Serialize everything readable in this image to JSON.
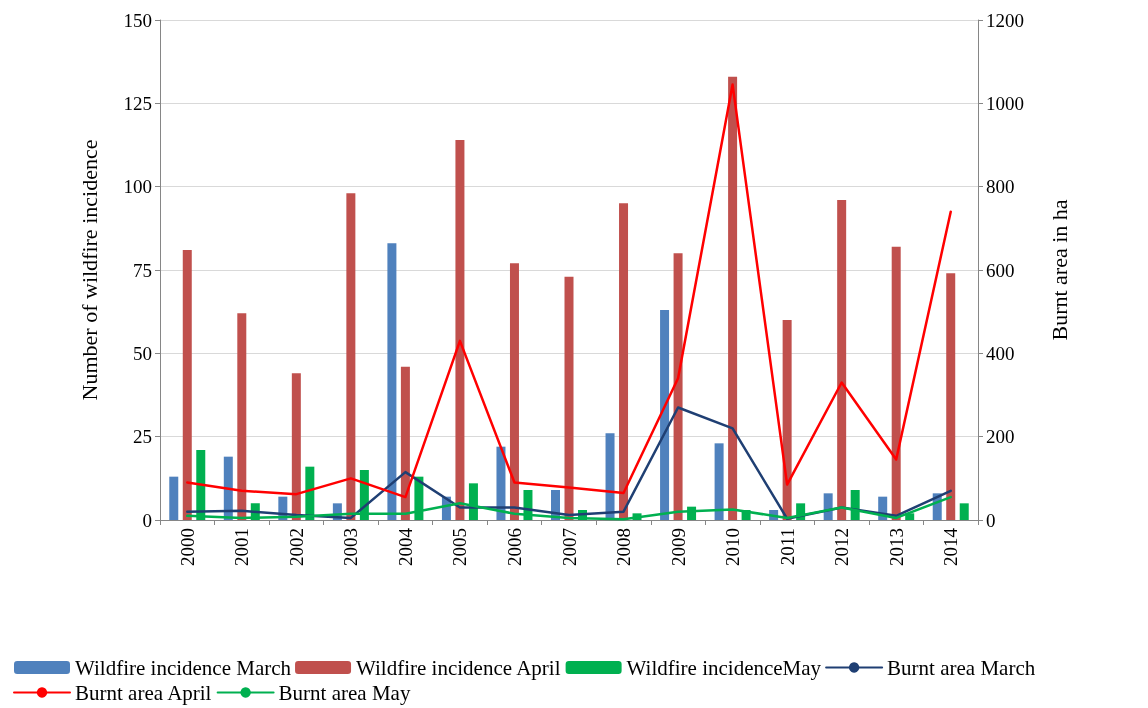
{
  "chart_data": {
    "type": "bar",
    "xlabel": null,
    "ylabel": "Number of wildfire incidence",
    "y2label": "Burnt area in ha",
    "categories": [
      "2000",
      "2001",
      "2002",
      "2003",
      "2004",
      "2005",
      "2006",
      "2007",
      "2008",
      "2009",
      "2010",
      "2011",
      "2012",
      "2013",
      "2014"
    ],
    "series": [
      {
        "name": "Wildfire incidence March",
        "color": "#4f81bd",
        "values": [
          13,
          19,
          7,
          5,
          83,
          7,
          22,
          9,
          26,
          63,
          23,
          3,
          8,
          7,
          8
        ]
      },
      {
        "name": "Wildfire incidence April",
        "color": "#c0504d",
        "values": [
          81,
          62,
          44,
          98,
          46,
          114,
          77,
          73,
          95,
          80,
          133,
          60,
          96,
          82,
          74
        ]
      },
      {
        "name": "Wildfire incidenceMay",
        "color": "#00b050",
        "values": [
          21,
          5,
          16,
          15,
          13,
          11,
          9,
          3,
          2,
          4,
          3,
          5,
          9,
          2,
          5
        ]
      },
      {
        "name": "Burnt area March",
        "type": "line",
        "axis": "y2",
        "color": "#1f3f73",
        "values": [
          20,
          22,
          12,
          5,
          115,
          30,
          30,
          12,
          20,
          270,
          220,
          3,
          30,
          10,
          70
        ]
      },
      {
        "name": "Burnt area April",
        "type": "line",
        "axis": "y2",
        "color": "#ff0000",
        "values": [
          90,
          70,
          62,
          100,
          55,
          430,
          90,
          78,
          65,
          340,
          1045,
          85,
          330,
          145,
          740
        ]
      },
      {
        "name": "Burnt area May",
        "type": "line",
        "axis": "y2",
        "color": "#00b050",
        "values": [
          10,
          5,
          8,
          15,
          15,
          40,
          15,
          5,
          2,
          20,
          25,
          5,
          30,
          5,
          55
        ]
      }
    ],
    "ylim": [
      0,
      150
    ],
    "yticks": [
      0,
      25,
      50,
      75,
      100,
      125,
      150
    ],
    "y2lim": [
      0,
      1200
    ],
    "y2ticks": [
      0,
      200,
      400,
      600,
      800,
      1000,
      1200
    ],
    "grid": "y",
    "legend": "bottom",
    "marker": "none",
    "line_style": "solid"
  }
}
